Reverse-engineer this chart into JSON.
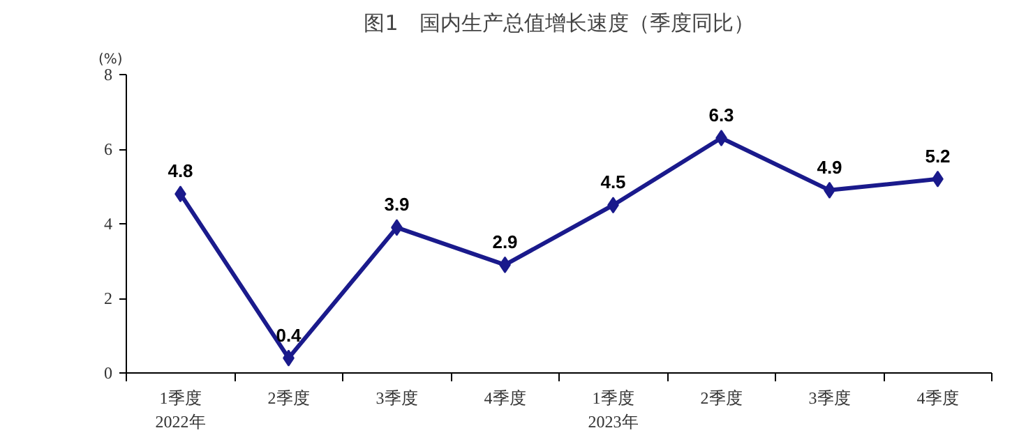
{
  "chart_data": {
    "type": "line",
    "title": "图1　国内生产总值增长速度（季度同比）",
    "ylabel": "(%)",
    "categories": [
      "1季度\n2022年",
      "2季度",
      "3季度",
      "4季度",
      "1季度\n2023年",
      "2季度",
      "3季度",
      "4季度"
    ],
    "series": [
      {
        "color": "#1a1a8c",
        "values": [
          4.8,
          0.4,
          3.9,
          2.9,
          4.5,
          6.3,
          4.9,
          5.2
        ]
      }
    ],
    "ylim": [
      0,
      8
    ],
    "yticks": [
      0,
      2,
      4,
      6,
      8
    ],
    "data_labels": true,
    "marker": "diamond",
    "line_style": "solid",
    "grid": false
  }
}
